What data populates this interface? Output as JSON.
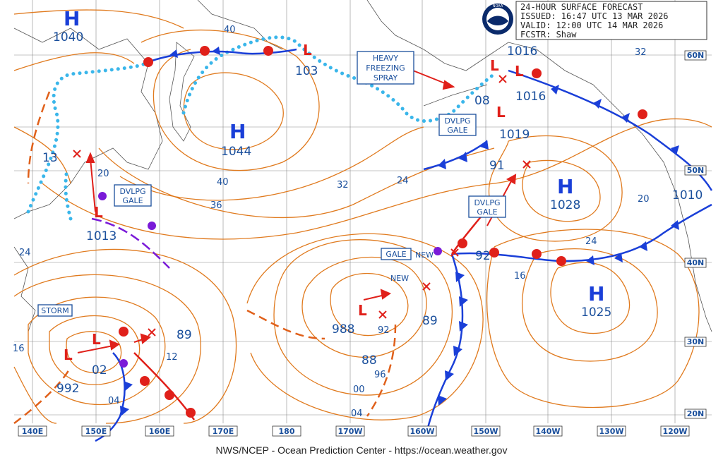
{
  "header": {
    "title": "24-HOUR SURFACE FORECAST",
    "issued": "ISSUED: 16:47 UTC 13 MAR 2026",
    "valid": "VALID:  12:00 UTC 14 MAR 2026",
    "forecaster": "FCSTR:  Shaw",
    "logo_text": "NOAA"
  },
  "footer": "NWS/NCEP - Ocean Prediction Center - https://ocean.weather.gov",
  "longitude_labels": [
    "140E",
    "150E",
    "160E",
    "170E",
    "180",
    "170W",
    "160W",
    "150W",
    "140W",
    "130W",
    "120W"
  ],
  "latitude_labels": [
    "60N",
    "50N",
    "40N",
    "30N",
    "20N"
  ],
  "pressure_centers": [
    {
      "type": "H",
      "value": "1040"
    },
    {
      "type": "H",
      "value": "1044"
    },
    {
      "type": "H",
      "value": "1028"
    },
    {
      "type": "H",
      "value": "1025"
    }
  ],
  "low_values": [
    "1013",
    "992",
    "988",
    "103",
    "08",
    "1016",
    "1016",
    "1019",
    "1010",
    "91",
    "92",
    "89",
    "89",
    "88",
    "00",
    "04",
    "12",
    "13",
    "92",
    "02",
    "04",
    "96"
  ],
  "isobar_labels": [
    "40",
    "40",
    "36",
    "32",
    "32",
    "24",
    "24",
    "24",
    "20",
    "20",
    "16",
    "16"
  ],
  "warnings": [
    {
      "text": [
        "HEAVY",
        "FREEZING",
        "SPRAY"
      ]
    },
    {
      "text": [
        "DVLPG",
        "GALE"
      ]
    },
    {
      "text": [
        "DVLPG",
        "GALE"
      ]
    },
    {
      "text": [
        "DVLPG",
        "GALE"
      ]
    },
    {
      "text": [
        "GALE"
      ]
    },
    {
      "text": [
        "STORM"
      ]
    }
  ],
  "new_labels": [
    "NEW",
    "NEW"
  ],
  "colors": {
    "isobar": "#e07a1e",
    "cold_front": "#1a3fd8",
    "warm_front": "#e0201a",
    "ice_edge": "#3ab6ea",
    "trough": "#e0601a",
    "label": "#1a4f9c"
  }
}
